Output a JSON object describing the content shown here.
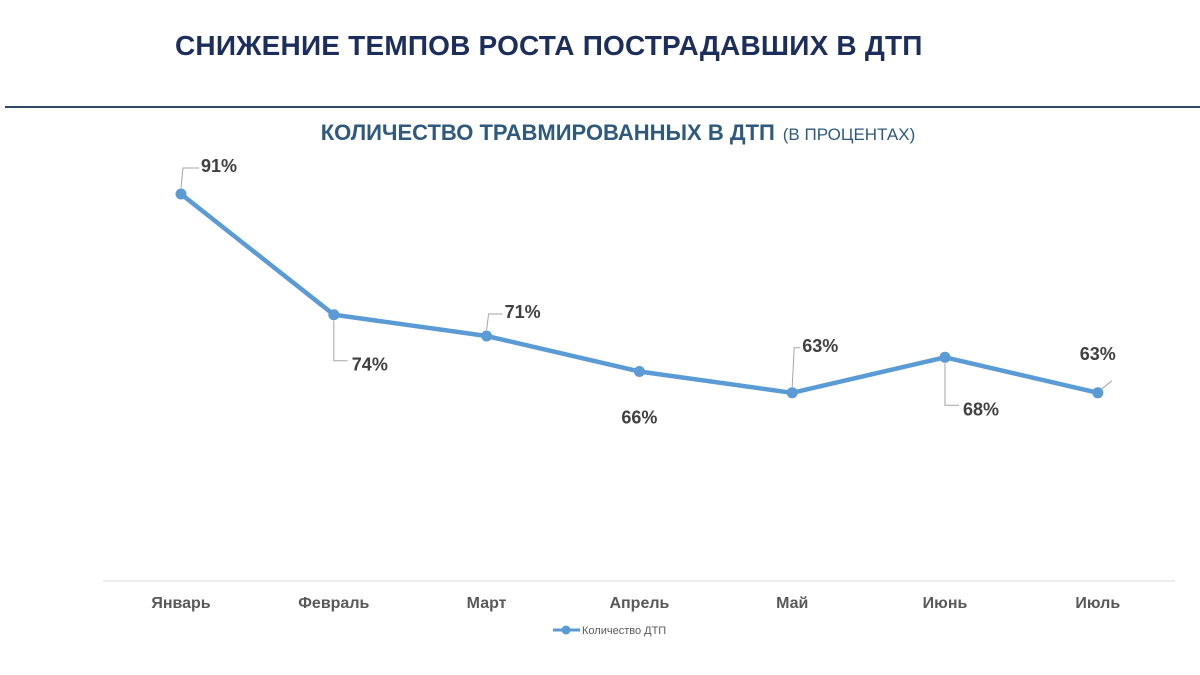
{
  "slide": {
    "title": "СНИЖЕНИЕ ТЕМПОВ РОСТА ПОСТРАДАВШИХ В ДТП"
  },
  "colors": {
    "series": "#5b9bd5",
    "title": "#1c2e5c",
    "chart_title": "#2f5a7e"
  },
  "chart_data": {
    "type": "line",
    "title": "КОЛИЧЕСТВО ТРАВМИРОВАННЫХ В ДТП",
    "subtitle": "(В ПРОЦЕНТАХ)",
    "xlabel": "",
    "ylabel": "",
    "grid": false,
    "legend_position": "bottom",
    "categories": [
      "Январь",
      "Февраль",
      "Март",
      "Апрель",
      "Май",
      "Июнь",
      "Июль"
    ],
    "series": [
      {
        "name": "Количество ДТП",
        "values": [
          91,
          74,
          71,
          66,
          63,
          68,
          63
        ],
        "labels": [
          "91%",
          "74%",
          "71%",
          "66%",
          "63%",
          "68%",
          "63%"
        ]
      }
    ],
    "ylim": [
      0,
      100
    ]
  }
}
